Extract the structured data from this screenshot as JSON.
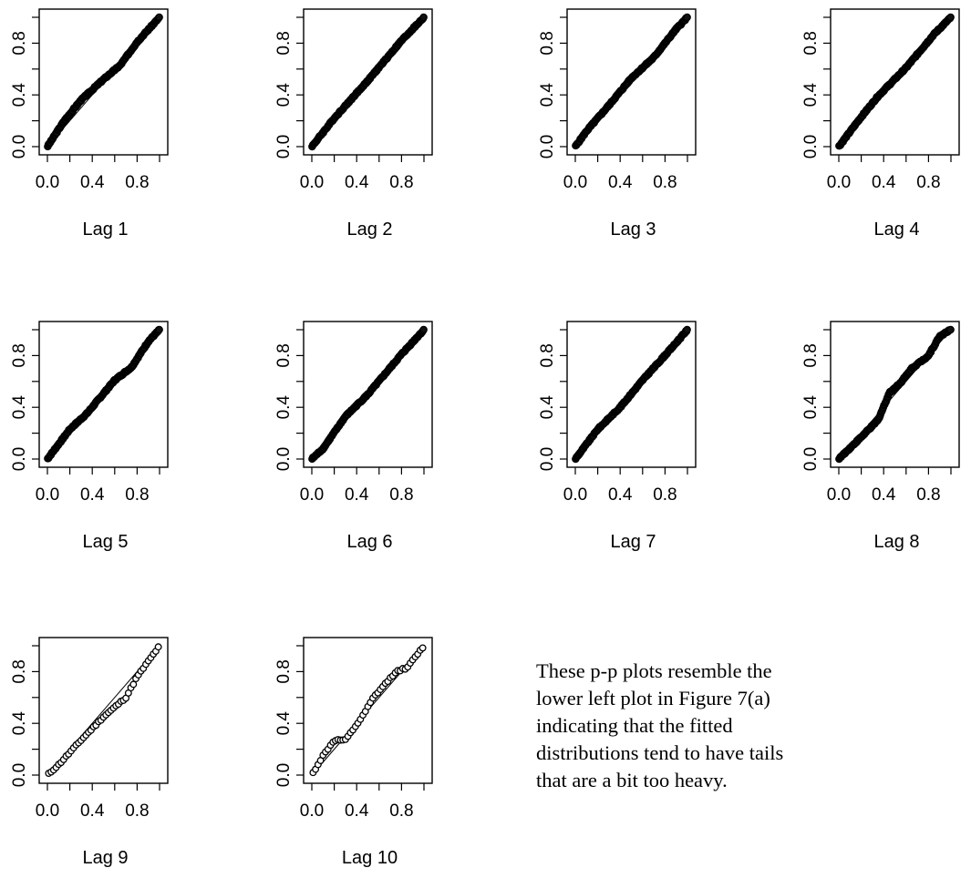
{
  "chart_data": {
    "type": "scatter",
    "description_axis": {
      "xlim": [
        0,
        1
      ],
      "ylim": [
        0,
        1
      ],
      "xticks": [
        "0.0",
        "0.4",
        "0.8"
      ],
      "yticks": [
        "0.0",
        "0.4",
        "0.8"
      ]
    },
    "reference_line": {
      "from": [
        0,
        0
      ],
      "to": [
        1,
        1
      ]
    },
    "panels": [
      {
        "label": "Lag 1",
        "deviations": [
          [
            0.0,
            0.0
          ],
          [
            0.15,
            0.05
          ],
          [
            0.3,
            0.06
          ],
          [
            0.5,
            0.02
          ],
          [
            0.65,
            -0.02
          ],
          [
            0.8,
            0.01
          ],
          [
            1.0,
            0.0
          ]
        ]
      },
      {
        "label": "Lag 2",
        "deviations": [
          [
            0.0,
            0.0
          ],
          [
            0.2,
            0.02
          ],
          [
            0.5,
            0.01
          ],
          [
            0.8,
            0.02
          ],
          [
            1.0,
            0.0
          ]
        ]
      },
      {
        "label": "Lag 3",
        "deviations": [
          [
            0.0,
            0.0
          ],
          [
            0.1,
            0.02
          ],
          [
            0.3,
            0.02
          ],
          [
            0.5,
            0.03
          ],
          [
            0.7,
            -0.01
          ],
          [
            0.9,
            0.01
          ],
          [
            1.0,
            0.0
          ]
        ]
      },
      {
        "label": "Lag 4",
        "deviations": [
          [
            0.0,
            0.0
          ],
          [
            0.2,
            0.03
          ],
          [
            0.35,
            0.04
          ],
          [
            0.6,
            0.01
          ],
          [
            0.85,
            0.02
          ],
          [
            1.0,
            0.0
          ]
        ]
      },
      {
        "label": "Lag 5",
        "deviations": [
          [
            0.0,
            0.0
          ],
          [
            0.2,
            0.03
          ],
          [
            0.35,
            0.0
          ],
          [
            0.6,
            0.01
          ],
          [
            0.75,
            -0.04
          ],
          [
            0.9,
            0.01
          ],
          [
            1.0,
            0.0
          ]
        ]
      },
      {
        "label": "Lag 6",
        "deviations": [
          [
            0.0,
            0.0
          ],
          [
            0.1,
            -0.02
          ],
          [
            0.3,
            0.03
          ],
          [
            0.5,
            0.0
          ],
          [
            0.8,
            0.01
          ],
          [
            1.0,
            0.0
          ]
        ]
      },
      {
        "label": "Lag 7",
        "deviations": [
          [
            0.0,
            0.0
          ],
          [
            0.2,
            0.03
          ],
          [
            0.4,
            0.0
          ],
          [
            0.6,
            0.01
          ],
          [
            0.85,
            0.0
          ],
          [
            1.0,
            0.0
          ]
        ]
      },
      {
        "label": "Lag 8",
        "deviations": [
          [
            0.0,
            0.0
          ],
          [
            0.2,
            -0.03
          ],
          [
            0.35,
            -0.05
          ],
          [
            0.45,
            0.06
          ],
          [
            0.55,
            0.04
          ],
          [
            0.65,
            0.05
          ],
          [
            0.8,
            0.0
          ],
          [
            0.9,
            0.05
          ],
          [
            1.0,
            0.0
          ]
        ]
      },
      {
        "label": "Lag 9",
        "deviations": [
          [
            0.0,
            0.0
          ],
          [
            0.1,
            -0.02
          ],
          [
            0.3,
            -0.03
          ],
          [
            0.5,
            -0.05
          ],
          [
            0.7,
            -0.1
          ],
          [
            0.8,
            -0.04
          ],
          [
            0.9,
            -0.02
          ],
          [
            1.0,
            0.0
          ]
        ]
      },
      {
        "label": "Lag 10",
        "deviations": [
          [
            0.0,
            0.0
          ],
          [
            0.1,
            0.05
          ],
          [
            0.2,
            0.07
          ],
          [
            0.3,
            -0.03
          ],
          [
            0.45,
            0.0
          ],
          [
            0.55,
            0.05
          ],
          [
            0.75,
            0.05
          ],
          [
            0.85,
            -0.02
          ],
          [
            1.0,
            0.0
          ]
        ]
      }
    ]
  },
  "note": {
    "text": "These p-p plots resemble the\nlower left plot in Figure 7(a)\nindicating that the fitted\ndistributions tend to have tails\nthat are a bit too heavy."
  }
}
